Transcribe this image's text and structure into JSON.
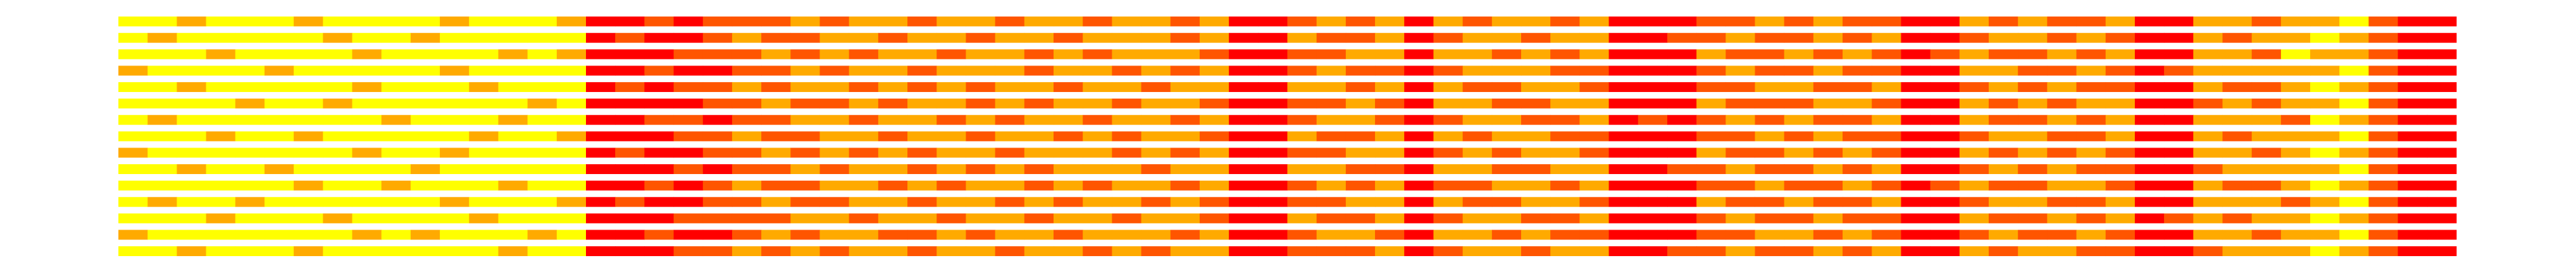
{
  "chart_data": {
    "type": "heatmap",
    "zlim": [
      0,
      3
    ],
    "colorscale": [
      "#ffff00",
      "#ff0000"
    ],
    "z": [
      [
        0,
        0,
        1,
        0,
        0,
        0,
        1,
        0,
        0,
        0,
        0,
        1,
        0,
        0,
        0,
        1,
        3,
        3,
        2,
        3,
        2,
        2,
        2,
        1,
        2,
        1,
        1,
        2,
        1,
        1,
        2,
        1,
        1,
        2,
        1,
        1,
        2,
        1,
        3,
        3,
        2,
        1,
        2,
        1,
        3,
        1,
        2,
        1,
        1,
        2,
        1,
        3,
        3,
        3,
        2,
        2,
        1,
        2,
        1,
        2,
        2,
        3,
        3,
        1,
        2,
        1,
        2,
        2,
        1,
        3,
        3,
        1,
        1,
        2,
        1,
        1,
        0,
        2,
        3,
        3
      ],
      [
        0,
        1,
        0,
        0,
        0,
        0,
        0,
        1,
        0,
        0,
        1,
        0,
        0,
        0,
        0,
        0,
        3,
        2,
        3,
        3,
        2,
        1,
        2,
        2,
        1,
        1,
        2,
        1,
        1,
        2,
        1,
        1,
        2,
        1,
        1,
        1,
        2,
        1,
        3,
        3,
        1,
        2,
        2,
        1,
        3,
        2,
        1,
        1,
        2,
        1,
        1,
        3,
        3,
        2,
        2,
        1,
        2,
        2,
        1,
        2,
        1,
        3,
        3,
        2,
        1,
        1,
        2,
        1,
        2,
        3,
        3,
        1,
        2,
        1,
        1,
        0,
        1,
        2,
        3,
        3
      ],
      [
        0,
        0,
        0,
        1,
        0,
        0,
        0,
        0,
        1,
        0,
        0,
        0,
        0,
        1,
        0,
        1,
        3,
        3,
        3,
        2,
        2,
        2,
        1,
        2,
        1,
        2,
        1,
        1,
        2,
        1,
        1,
        2,
        1,
        2,
        1,
        1,
        1,
        2,
        3,
        3,
        2,
        2,
        1,
        1,
        3,
        1,
        1,
        2,
        1,
        2,
        1,
        3,
        3,
        3,
        1,
        2,
        2,
        1,
        2,
        1,
        2,
        3,
        2,
        1,
        2,
        2,
        1,
        2,
        1,
        3,
        3,
        1,
        1,
        2,
        0,
        1,
        1,
        2,
        3,
        3
      ],
      [
        1,
        0,
        0,
        0,
        0,
        1,
        0,
        0,
        0,
        0,
        0,
        1,
        0,
        0,
        0,
        0,
        3,
        3,
        2,
        3,
        3,
        2,
        2,
        1,
        2,
        1,
        1,
        2,
        1,
        1,
        1,
        2,
        1,
        1,
        2,
        1,
        2,
        1,
        3,
        3,
        2,
        1,
        2,
        2,
        3,
        2,
        1,
        1,
        1,
        2,
        2,
        3,
        3,
        3,
        2,
        1,
        2,
        2,
        1,
        2,
        2,
        3,
        3,
        1,
        1,
        2,
        2,
        1,
        2,
        3,
        2,
        1,
        1,
        1,
        1,
        1,
        0,
        2,
        3,
        3
      ],
      [
        0,
        0,
        1,
        0,
        0,
        0,
        0,
        0,
        1,
        0,
        0,
        0,
        1,
        0,
        0,
        0,
        3,
        2,
        3,
        2,
        2,
        1,
        2,
        1,
        1,
        2,
        1,
        2,
        1,
        2,
        1,
        1,
        2,
        1,
        1,
        2,
        1,
        1,
        3,
        3,
        1,
        1,
        2,
        1,
        3,
        1,
        2,
        2,
        1,
        1,
        2,
        3,
        3,
        3,
        2,
        2,
        1,
        1,
        2,
        2,
        1,
        3,
        3,
        2,
        1,
        2,
        1,
        2,
        2,
        3,
        3,
        1,
        2,
        2,
        1,
        0,
        1,
        2,
        3,
        3
      ],
      [
        0,
        0,
        0,
        0,
        1,
        0,
        0,
        1,
        0,
        0,
        0,
        0,
        0,
        0,
        1,
        0,
        3,
        3,
        3,
        3,
        2,
        2,
        1,
        2,
        2,
        1,
        2,
        1,
        1,
        2,
        1,
        2,
        1,
        1,
        2,
        1,
        1,
        2,
        3,
        3,
        2,
        2,
        1,
        2,
        3,
        1,
        1,
        2,
        2,
        1,
        1,
        3,
        3,
        3,
        1,
        2,
        2,
        2,
        1,
        1,
        2,
        3,
        3,
        1,
        2,
        1,
        2,
        1,
        1,
        3,
        3,
        2,
        1,
        2,
        1,
        1,
        0,
        2,
        3,
        3
      ],
      [
        0,
        1,
        0,
        0,
        0,
        0,
        0,
        0,
        0,
        1,
        0,
        0,
        0,
        1,
        0,
        0,
        3,
        3,
        2,
        2,
        3,
        2,
        2,
        1,
        1,
        2,
        1,
        1,
        2,
        1,
        2,
        1,
        1,
        2,
        1,
        1,
        2,
        1,
        3,
        3,
        2,
        1,
        1,
        2,
        3,
        2,
        1,
        1,
        2,
        2,
        1,
        3,
        2,
        3,
        2,
        1,
        2,
        1,
        2,
        2,
        1,
        3,
        3,
        1,
        2,
        2,
        1,
        2,
        1,
        3,
        3,
        1,
        1,
        1,
        2,
        0,
        1,
        2,
        3,
        3
      ],
      [
        0,
        0,
        0,
        1,
        0,
        0,
        1,
        0,
        0,
        0,
        0,
        0,
        1,
        0,
        0,
        1,
        3,
        3,
        3,
        2,
        2,
        1,
        2,
        2,
        1,
        1,
        2,
        1,
        1,
        2,
        1,
        1,
        2,
        1,
        2,
        1,
        1,
        2,
        3,
        3,
        1,
        2,
        2,
        1,
        3,
        1,
        2,
        1,
        1,
        2,
        2,
        3,
        3,
        3,
        2,
        2,
        1,
        2,
        1,
        2,
        2,
        3,
        3,
        2,
        1,
        1,
        2,
        2,
        1,
        3,
        3,
        1,
        2,
        1,
        1,
        1,
        0,
        2,
        3,
        3
      ],
      [
        1,
        0,
        0,
        0,
        0,
        0,
        0,
        0,
        1,
        0,
        0,
        1,
        0,
        0,
        0,
        0,
        3,
        2,
        3,
        3,
        2,
        2,
        1,
        2,
        1,
        2,
        1,
        2,
        1,
        1,
        2,
        1,
        1,
        1,
        2,
        1,
        2,
        1,
        3,
        3,
        2,
        2,
        1,
        1,
        3,
        2,
        1,
        2,
        1,
        1,
        2,
        3,
        3,
        3,
        1,
        2,
        2,
        1,
        2,
        1,
        2,
        3,
        3,
        1,
        2,
        1,
        2,
        1,
        2,
        3,
        3,
        1,
        1,
        2,
        1,
        0,
        1,
        2,
        3,
        3
      ],
      [
        0,
        0,
        1,
        0,
        0,
        1,
        0,
        0,
        0,
        0,
        1,
        0,
        0,
        0,
        0,
        0,
        3,
        3,
        3,
        2,
        3,
        2,
        2,
        1,
        2,
        1,
        1,
        2,
        1,
        2,
        1,
        2,
        1,
        1,
        1,
        2,
        1,
        1,
        3,
        3,
        1,
        1,
        2,
        2,
        3,
        1,
        1,
        2,
        2,
        1,
        1,
        3,
        3,
        2,
        2,
        1,
        2,
        2,
        1,
        2,
        1,
        3,
        3,
        2,
        1,
        2,
        1,
        2,
        2,
        3,
        3,
        2,
        1,
        1,
        1,
        1,
        0,
        2,
        3,
        3
      ],
      [
        0,
        0,
        0,
        0,
        0,
        0,
        1,
        0,
        0,
        1,
        0,
        0,
        0,
        1,
        0,
        0,
        3,
        3,
        2,
        3,
        2,
        1,
        2,
        2,
        1,
        1,
        2,
        1,
        2,
        1,
        1,
        2,
        1,
        2,
        1,
        1,
        2,
        1,
        3,
        3,
        2,
        1,
        2,
        1,
        3,
        2,
        2,
        1,
        1,
        2,
        1,
        3,
        3,
        3,
        2,
        2,
        1,
        2,
        2,
        1,
        2,
        3,
        2,
        1,
        2,
        2,
        1,
        1,
        2,
        3,
        3,
        1,
        2,
        2,
        1,
        0,
        1,
        2,
        3,
        3
      ],
      [
        0,
        1,
        0,
        0,
        1,
        0,
        0,
        0,
        0,
        0,
        0,
        1,
        0,
        0,
        0,
        1,
        3,
        2,
        3,
        3,
        2,
        2,
        1,
        2,
        2,
        1,
        1,
        2,
        1,
        1,
        2,
        1,
        2,
        1,
        1,
        2,
        1,
        2,
        3,
        3,
        2,
        2,
        1,
        1,
        3,
        1,
        2,
        2,
        1,
        1,
        2,
        3,
        3,
        3,
        1,
        2,
        2,
        1,
        2,
        2,
        1,
        3,
        3,
        2,
        1,
        1,
        2,
        2,
        1,
        3,
        3,
        1,
        1,
        1,
        2,
        1,
        0,
        2,
        3,
        3
      ],
      [
        0,
        0,
        0,
        1,
        0,
        0,
        0,
        1,
        0,
        0,
        0,
        0,
        1,
        0,
        0,
        0,
        3,
        3,
        3,
        2,
        2,
        2,
        2,
        1,
        1,
        2,
        1,
        1,
        2,
        1,
        1,
        2,
        1,
        1,
        2,
        1,
        1,
        2,
        3,
        3,
        1,
        2,
        2,
        1,
        3,
        2,
        1,
        1,
        2,
        2,
        1,
        3,
        3,
        3,
        2,
        1,
        2,
        2,
        1,
        2,
        2,
        3,
        3,
        1,
        2,
        2,
        1,
        2,
        1,
        3,
        2,
        1,
        2,
        1,
        1,
        0,
        1,
        2,
        3,
        3
      ],
      [
        1,
        0,
        0,
        0,
        0,
        0,
        0,
        0,
        1,
        0,
        1,
        0,
        0,
        0,
        1,
        0,
        3,
        3,
        2,
        3,
        3,
        2,
        1,
        2,
        1,
        1,
        2,
        2,
        1,
        2,
        1,
        1,
        2,
        1,
        1,
        1,
        2,
        1,
        3,
        3,
        2,
        1,
        1,
        2,
        3,
        1,
        1,
        2,
        1,
        2,
        2,
        3,
        3,
        3,
        2,
        2,
        1,
        1,
        2,
        1,
        2,
        3,
        3,
        2,
        1,
        2,
        2,
        1,
        2,
        3,
        3,
        1,
        1,
        2,
        1,
        1,
        0,
        2,
        3,
        3
      ],
      [
        0,
        0,
        1,
        0,
        0,
        0,
        1,
        0,
        0,
        0,
        0,
        0,
        0,
        1,
        0,
        0,
        3,
        3,
        3,
        2,
        2,
        1,
        2,
        1,
        2,
        1,
        1,
        2,
        1,
        1,
        2,
        1,
        1,
        2,
        1,
        2,
        1,
        1,
        3,
        3,
        2,
        2,
        2,
        1,
        3,
        2,
        1,
        1,
        2,
        1,
        1,
        3,
        3,
        2,
        2,
        1,
        2,
        2,
        1,
        2,
        1,
        3,
        3,
        1,
        2,
        1,
        1,
        2,
        2,
        3,
        3,
        2,
        1,
        1,
        1,
        0,
        1,
        2,
        3,
        3
      ]
    ]
  }
}
